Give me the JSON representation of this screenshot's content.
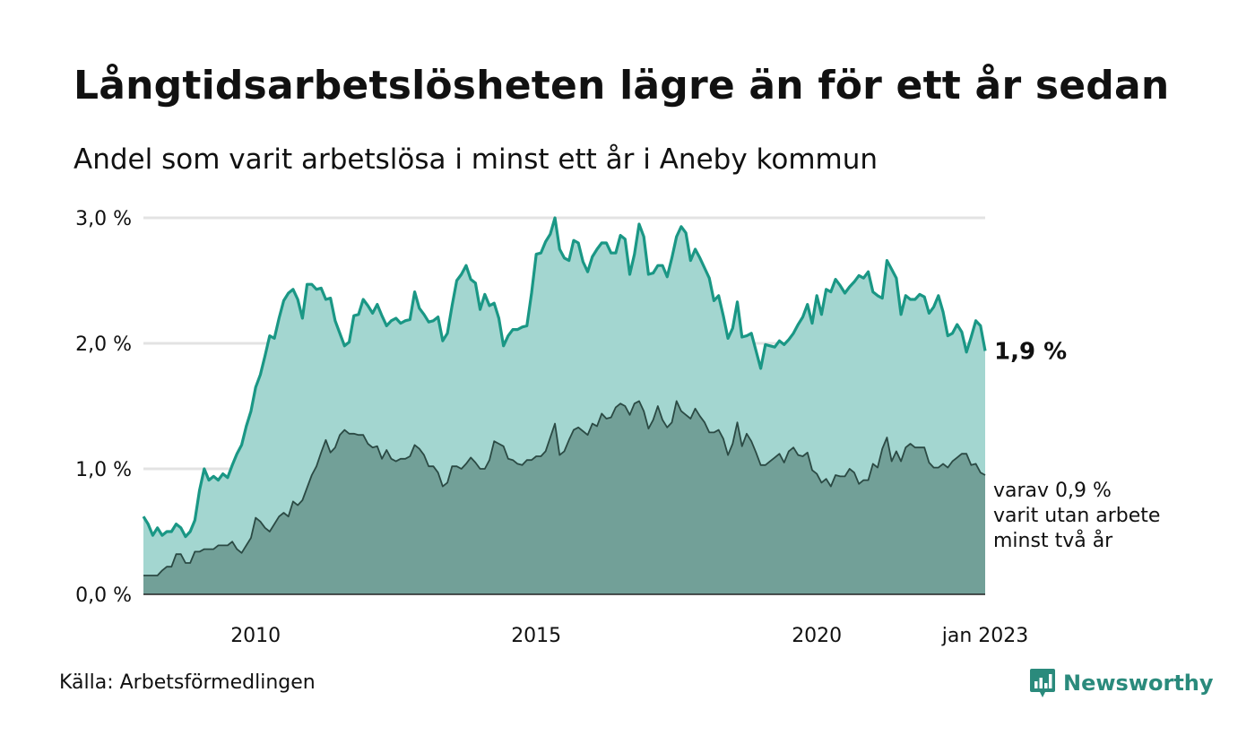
{
  "title": "Långtidsarbetslösheten lägre än för ett år sedan",
  "subtitle": "Andel som varit arbetslösa i minst ett år i Aneby kommun",
  "source": "Källa: Arbetsförmedlingen",
  "brand": {
    "name": "Newsworthy",
    "icon": "newsworthy-logo-icon",
    "color": "#2a8a7c"
  },
  "colors": {
    "area_one_year": "#a3d6d0",
    "line_one_year": "#1a9785",
    "area_two_years": "#72a098",
    "line_two_years": "#2b4a44",
    "grid": "#e3e3e3",
    "baseline": "#222222"
  },
  "chart_data": {
    "type": "area",
    "x_start": "2008-01",
    "x_end": "2023-01",
    "frequency": "monthly",
    "x_ticks": [
      {
        "label": "2010",
        "x": "2010-01"
      },
      {
        "label": "2015",
        "x": "2015-01"
      },
      {
        "label": "2020",
        "x": "2020-01"
      },
      {
        "label": "jan 2023",
        "x": "2023-01"
      }
    ],
    "y_ticks": [
      {
        "label": "0,0 %",
        "value": 0
      },
      {
        "label": "1,0 %",
        "value": 1
      },
      {
        "label": "2,0 %",
        "value": 2
      },
      {
        "label": "3,0 %",
        "value": 3
      }
    ],
    "ylim": [
      0,
      3
    ],
    "grid": true,
    "series": [
      {
        "key": "one_year",
        "end_label": "1,9 %",
        "values": [
          0.62,
          0.56,
          0.47,
          0.53,
          0.47,
          0.5,
          0.5,
          0.56,
          0.53,
          0.46,
          0.5,
          0.59,
          0.83,
          1.0,
          0.91,
          0.94,
          0.91,
          0.96,
          0.93,
          1.03,
          1.12,
          1.19,
          1.34,
          1.46,
          1.65,
          1.75,
          1.9,
          2.06,
          2.04,
          2.2,
          2.34,
          2.4,
          2.43,
          2.35,
          2.2,
          2.47,
          2.47,
          2.43,
          2.44,
          2.35,
          2.36,
          2.18,
          2.08,
          1.98,
          2.01,
          2.22,
          2.23,
          2.35,
          2.3,
          2.24,
          2.31,
          2.22,
          2.14,
          2.18,
          2.2,
          2.16,
          2.18,
          2.19,
          2.41,
          2.28,
          2.23,
          2.17,
          2.18,
          2.21,
          2.02,
          2.08,
          2.3,
          2.5,
          2.55,
          2.62,
          2.51,
          2.48,
          2.27,
          2.39,
          2.3,
          2.32,
          2.2,
          1.98,
          2.06,
          2.11,
          2.11,
          2.13,
          2.14,
          2.4,
          2.71,
          2.72,
          2.81,
          2.87,
          3.0,
          2.75,
          2.68,
          2.66,
          2.82,
          2.8,
          2.65,
          2.57,
          2.69,
          2.75,
          2.8,
          2.8,
          2.72,
          2.72,
          2.86,
          2.83,
          2.55,
          2.71,
          2.95,
          2.85,
          2.55,
          2.56,
          2.62,
          2.62,
          2.53,
          2.68,
          2.85,
          2.93,
          2.88,
          2.66,
          2.75,
          2.68,
          2.6,
          2.52,
          2.34,
          2.38,
          2.22,
          2.04,
          2.12,
          2.33,
          2.05,
          2.06,
          2.08,
          1.94,
          1.8,
          1.99,
          1.98,
          1.97,
          2.02,
          1.99,
          2.03,
          2.08,
          2.15,
          2.21,
          2.31,
          2.16,
          2.38,
          2.23,
          2.43,
          2.41,
          2.51,
          2.46,
          2.4,
          2.45,
          2.49,
          2.54,
          2.52,
          2.57,
          2.41,
          2.38,
          2.36,
          2.66,
          2.59,
          2.52,
          2.23,
          2.38,
          2.35,
          2.35,
          2.39,
          2.37,
          2.24,
          2.29,
          2.38,
          2.25,
          2.06,
          2.08,
          2.15,
          2.09,
          1.93,
          2.05,
          2.18,
          2.14,
          1.94
        ]
      },
      {
        "key": "two_years",
        "label_lines": [
          "varav 0,9 %",
          "varit utan arbete",
          "minst två år"
        ],
        "values": [
          0.15,
          0.15,
          0.15,
          0.15,
          0.19,
          0.22,
          0.22,
          0.32,
          0.32,
          0.25,
          0.25,
          0.34,
          0.34,
          0.36,
          0.36,
          0.36,
          0.39,
          0.39,
          0.39,
          0.42,
          0.36,
          0.33,
          0.39,
          0.45,
          0.61,
          0.58,
          0.53,
          0.5,
          0.56,
          0.62,
          0.65,
          0.62,
          0.74,
          0.71,
          0.75,
          0.85,
          0.95,
          1.02,
          1.13,
          1.23,
          1.13,
          1.17,
          1.27,
          1.31,
          1.28,
          1.28,
          1.27,
          1.27,
          1.2,
          1.17,
          1.18,
          1.08,
          1.15,
          1.08,
          1.06,
          1.08,
          1.08,
          1.1,
          1.19,
          1.16,
          1.11,
          1.02,
          1.02,
          0.97,
          0.86,
          0.89,
          1.02,
          1.02,
          1.0,
          1.04,
          1.09,
          1.05,
          1.0,
          1.0,
          1.07,
          1.22,
          1.2,
          1.18,
          1.08,
          1.07,
          1.04,
          1.03,
          1.07,
          1.07,
          1.1,
          1.1,
          1.14,
          1.25,
          1.36,
          1.11,
          1.14,
          1.23,
          1.31,
          1.33,
          1.3,
          1.27,
          1.36,
          1.34,
          1.44,
          1.4,
          1.41,
          1.49,
          1.52,
          1.5,
          1.43,
          1.52,
          1.54,
          1.46,
          1.32,
          1.39,
          1.5,
          1.39,
          1.33,
          1.37,
          1.54,
          1.46,
          1.43,
          1.4,
          1.48,
          1.42,
          1.37,
          1.29,
          1.29,
          1.31,
          1.24,
          1.11,
          1.2,
          1.37,
          1.18,
          1.28,
          1.22,
          1.13,
          1.03,
          1.03,
          1.06,
          1.09,
          1.12,
          1.05,
          1.14,
          1.17,
          1.11,
          1.1,
          1.13,
          0.99,
          0.96,
          0.89,
          0.92,
          0.86,
          0.95,
          0.94,
          0.94,
          1.0,
          0.97,
          0.88,
          0.91,
          0.91,
          1.04,
          1.01,
          1.16,
          1.25,
          1.06,
          1.14,
          1.06,
          1.17,
          1.2,
          1.17,
          1.17,
          1.17,
          1.05,
          1.01,
          1.01,
          1.04,
          1.01,
          1.06,
          1.09,
          1.12,
          1.12,
          1.03,
          1.04,
          0.97,
          0.95
        ]
      }
    ]
  }
}
